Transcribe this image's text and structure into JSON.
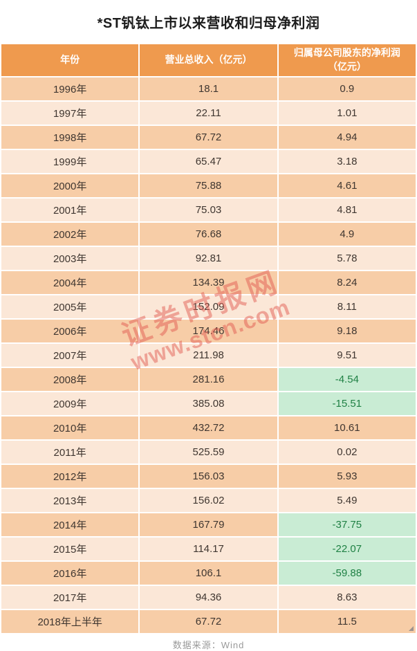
{
  "title": "*ST钒钛上市以来营收和归母净利润",
  "footer": {
    "source_label": "数据来源：Wind"
  },
  "watermark": {
    "cn": "证券时报网",
    "url": "www.stcn.com"
  },
  "colors": {
    "header_bg": "#ef9a4e",
    "row_dark": "#f7cda7",
    "row_light": "#fbe7d7",
    "negative_bg": "#c9ecd4",
    "negative_text": "#1f8044",
    "watermark_red": "#e2584e"
  },
  "table": {
    "headers": [
      {
        "line1": "年份",
        "line2": ""
      },
      {
        "line1": "营业总收入（亿元）",
        "line2": ""
      },
      {
        "line1": "归属母公司股东的净利润",
        "line2": "（亿元）"
      }
    ],
    "rows": [
      {
        "year": "1996年",
        "revenue": "18.1",
        "profit": "0.9"
      },
      {
        "year": "1997年",
        "revenue": "22.11",
        "profit": "1.01"
      },
      {
        "year": "1998年",
        "revenue": "67.72",
        "profit": "4.94"
      },
      {
        "year": "1999年",
        "revenue": "65.47",
        "profit": "3.18"
      },
      {
        "year": "2000年",
        "revenue": "75.88",
        "profit": "4.61"
      },
      {
        "year": "2001年",
        "revenue": "75.03",
        "profit": "4.81"
      },
      {
        "year": "2002年",
        "revenue": "76.68",
        "profit": "4.9"
      },
      {
        "year": "2003年",
        "revenue": "92.81",
        "profit": "5.78"
      },
      {
        "year": "2004年",
        "revenue": "134.39",
        "profit": "8.24"
      },
      {
        "year": "2005年",
        "revenue": "152.09",
        "profit": "8.11"
      },
      {
        "year": "2006年",
        "revenue": "174.46",
        "profit": "9.18"
      },
      {
        "year": "2007年",
        "revenue": "211.98",
        "profit": "9.51"
      },
      {
        "year": "2008年",
        "revenue": "281.16",
        "profit": "-4.54"
      },
      {
        "year": "2009年",
        "revenue": "385.08",
        "profit": "-15.51"
      },
      {
        "year": "2010年",
        "revenue": "432.72",
        "profit": "10.61"
      },
      {
        "year": "2011年",
        "revenue": "525.59",
        "profit": "0.02"
      },
      {
        "year": "2012年",
        "revenue": "156.03",
        "profit": "5.93"
      },
      {
        "year": "2013年",
        "revenue": "156.02",
        "profit": "5.49"
      },
      {
        "year": "2014年",
        "revenue": "167.79",
        "profit": "-37.75"
      },
      {
        "year": "2015年",
        "revenue": "114.17",
        "profit": "-22.07"
      },
      {
        "year": "2016年",
        "revenue": "106.1",
        "profit": "-59.88"
      },
      {
        "year": "2017年",
        "revenue": "94.36",
        "profit": "8.63"
      },
      {
        "year": "2018年上半年",
        "revenue": "67.72",
        "profit": "11.5"
      }
    ]
  },
  "chart_data": {
    "type": "table",
    "title": "*ST钒钛上市以来营收和归母净利润",
    "columns": [
      "年份",
      "营业总收入（亿元）",
      "归属母公司股东的净利润（亿元）"
    ],
    "categories": [
      "1996年",
      "1997年",
      "1998年",
      "1999年",
      "2000年",
      "2001年",
      "2002年",
      "2003年",
      "2004年",
      "2005年",
      "2006年",
      "2007年",
      "2008年",
      "2009年",
      "2010年",
      "2011年",
      "2012年",
      "2013年",
      "2014年",
      "2015年",
      "2016年",
      "2017年",
      "2018年上半年"
    ],
    "series": [
      {
        "name": "营业总收入（亿元）",
        "values": [
          18.1,
          22.11,
          67.72,
          65.47,
          75.88,
          75.03,
          76.68,
          92.81,
          134.39,
          152.09,
          174.46,
          211.98,
          281.16,
          385.08,
          432.72,
          525.59,
          156.03,
          156.02,
          167.79,
          114.17,
          106.1,
          94.36,
          67.72
        ]
      },
      {
        "name": "归属母公司股东的净利润（亿元）",
        "values": [
          0.9,
          1.01,
          4.94,
          3.18,
          4.61,
          4.81,
          4.9,
          5.78,
          8.24,
          8.11,
          9.18,
          9.51,
          -4.54,
          -15.51,
          10.61,
          0.02,
          5.93,
          5.49,
          -37.75,
          -22.07,
          -59.88,
          8.63,
          11.5
        ]
      }
    ],
    "negative_highlight": "negative profit cells have light-green background with dark-green text",
    "source": "数据来源：Wind"
  }
}
